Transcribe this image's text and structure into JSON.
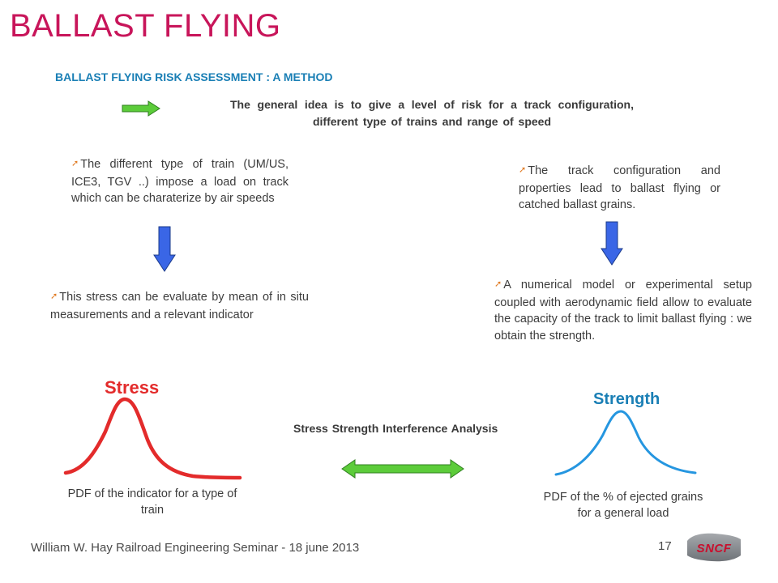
{
  "title": "BALLAST FLYING",
  "subtitle": "BALLAST FLYING RISK ASSESSMENT  : A METHOD",
  "idea": "The general idea is to give a level of risk for a track configuration, different type of trains and range of speed",
  "bullets": {
    "train_loads": "The different type of train (UM/US, ICE3, TGV ..) impose a load on track which can be charaterize by air speeds",
    "track_config": "The track configuration and properties lead to ballast flying or catched ballast grains.",
    "stress_eval": "This stress can be evaluate by mean of in situ measurements and a relevant indicator",
    "numerical_model": "A numerical model or experimental setup coupled with aerodynamic field allow to evaluate the capacity of the track to limit ballast flying : we obtain the strength."
  },
  "stress_label": "Stress",
  "strength_label": "Strength",
  "interference_label": "Stress Strength Interference Analysis",
  "stress_caption": "PDF of the indicator for a type of train",
  "strength_caption": "PDF of the % of ejected grains for a general load",
  "footer": "William W. Hay Railroad Engineering Seminar - 18 june 2013",
  "page_number": "17",
  "logo_text": "SNCF",
  "colors": {
    "title": "#c8155a",
    "subtitle": "#1a7fb5",
    "stress_curve": "#e32b2b",
    "strength_curve": "#2596e0",
    "arrow_green": "#5ccc3a",
    "arrow_blue": "#3a66e6",
    "bullet": "#e07a22"
  },
  "icons": {
    "bullet": "orange-arrow-bullet-icon",
    "green_arrow": "right-arrow-icon",
    "blue_arrow": "down-arrow-icon",
    "double_arrow": "double-arrow-icon"
  }
}
